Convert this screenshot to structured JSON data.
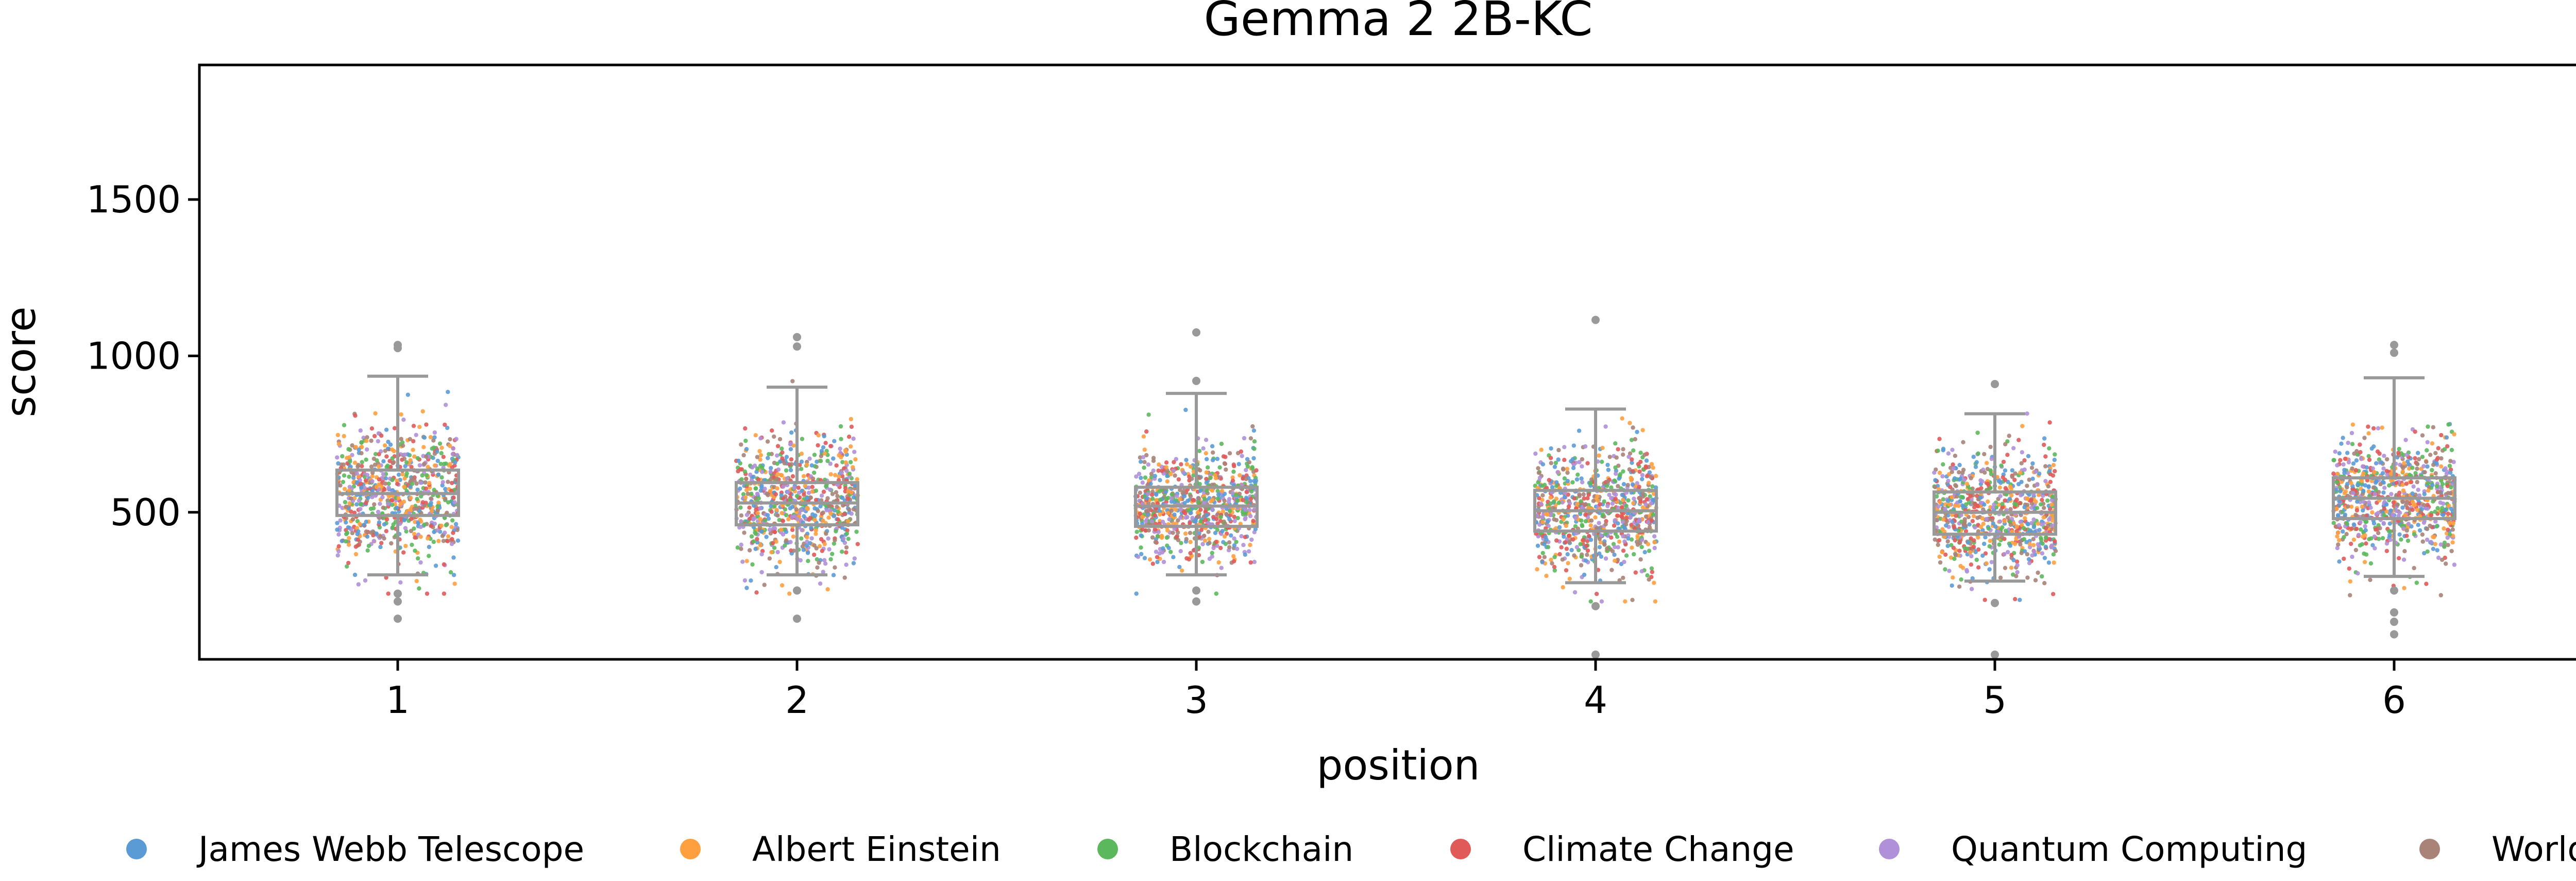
{
  "chart_data": {
    "type": "scatter",
    "subtype": "strip-plot-with-boxplot",
    "title": "Gemma 2 2B-KC",
    "xlabel": "position",
    "ylabel": "score",
    "categories": [
      "1",
      "2",
      "3",
      "4",
      "5",
      "6"
    ],
    "ylim": [
      30,
      1930
    ],
    "yticks": [
      "500",
      "1000",
      "1500"
    ],
    "grid": false,
    "legend_position": "bottom",
    "box_color": "#999999",
    "boxes": [
      {
        "category": "1",
        "whisker_low": 300,
        "q1": 490,
        "median": 560,
        "q3": 635,
        "whisker_high": 935,
        "outliers": [
          1025,
          1035,
          240,
          215,
          160
        ]
      },
      {
        "category": "2",
        "whisker_low": 300,
        "q1": 460,
        "median": 530,
        "q3": 595,
        "whisker_high": 900,
        "outliers": [
          1060,
          1030,
          250,
          160
        ]
      },
      {
        "category": "3",
        "whisker_low": 300,
        "q1": 455,
        "median": 520,
        "q3": 580,
        "whisker_high": 880,
        "outliers": [
          1075,
          920,
          250,
          215
        ]
      },
      {
        "category": "4",
        "whisker_low": 275,
        "q1": 440,
        "median": 505,
        "q3": 570,
        "whisker_high": 830,
        "outliers": [
          1115,
          200,
          45
        ]
      },
      {
        "category": "5",
        "whisker_low": 280,
        "q1": 430,
        "median": 500,
        "q3": 565,
        "whisker_high": 815,
        "outliers": [
          910,
          210,
          45
        ]
      },
      {
        "category": "6",
        "whisker_low": 295,
        "q1": 480,
        "median": 545,
        "q3": 610,
        "whisker_high": 930,
        "outliers": [
          1035,
          1010,
          250,
          180,
          150,
          110
        ]
      }
    ],
    "series": [
      {
        "name": "James Webb Telescope",
        "color": "#5b9bd5"
      },
      {
        "name": "Albert Einstein",
        "color": "#ffa040"
      },
      {
        "name": "Blockchain",
        "color": "#5cb85c"
      },
      {
        "name": "Climate Change",
        "color": "#e05a5a"
      },
      {
        "name": "Quantum Computing",
        "color": "#b090d8"
      },
      {
        "name": "World War II",
        "color": "#a98378"
      }
    ]
  }
}
